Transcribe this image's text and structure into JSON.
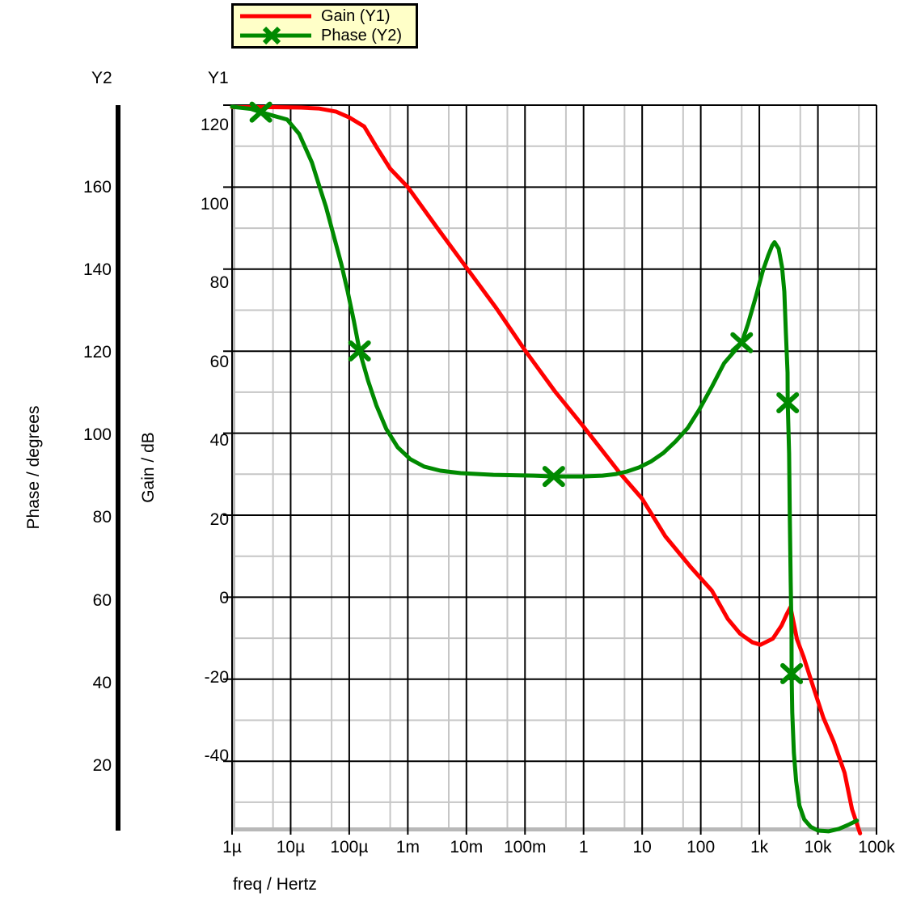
{
  "legend": {
    "items": [
      {
        "label": "Gain (Y1)",
        "color": "#ff0000",
        "marker": "none"
      },
      {
        "label": "Phase (Y2)",
        "color": "#008a00",
        "marker": "x"
      }
    ]
  },
  "axes": {
    "y1": {
      "name": "Y1",
      "title": "Gain / dB",
      "tick_labels": [
        "120",
        "100",
        "80",
        "60",
        "40",
        "20",
        "0",
        "-20",
        "-40"
      ]
    },
    "y2": {
      "name": "Y2",
      "title": "Phase / degrees",
      "tick_labels": [
        "160",
        "140",
        "120",
        "100",
        "80",
        "60",
        "40",
        "20"
      ]
    },
    "x": {
      "title": "freq / Hertz",
      "tick_labels": [
        "1µ",
        "10µ",
        "100µ",
        "1m",
        "10m",
        "100m",
        "1",
        "10",
        "100",
        "1k",
        "10k",
        "100k"
      ]
    }
  },
  "colors": {
    "major_grid": "#000000",
    "minor_grid": "#c6c6c6",
    "spine": "#b8b8b8",
    "legend_bg": "#ffffc8",
    "gain": "#ff0000",
    "phase": "#008a00"
  },
  "chart_data": {
    "type": "line",
    "title": "",
    "x_axis": {
      "label": "freq / Hertz",
      "scale": "log",
      "min": 1e-06,
      "max": 100000.0,
      "minor_gridlines": "at 5x each decade",
      "grid": true
    },
    "y_axes": [
      {
        "id": "Y1",
        "label": "Gain / dB",
        "min_visible": -57,
        "max_visible": 120,
        "major_step": 20,
        "minor_step": 10,
        "ticks": [
          120,
          100,
          80,
          60,
          40,
          20,
          0,
          -20,
          -40
        ]
      },
      {
        "id": "Y2",
        "label": "Phase / degrees",
        "min_visible": 3,
        "max_visible": 180,
        "major_step": 20,
        "ticks": [
          160,
          140,
          120,
          100,
          80,
          60,
          40,
          20
        ]
      }
    ],
    "legend_position": "top",
    "series": [
      {
        "name": "Gain (Y1)",
        "axis": "Y1",
        "color": "#ff0000",
        "marker": "none",
        "points": [
          [
            1e-06,
            119.5
          ],
          [
            5e-06,
            119.5
          ],
          [
            1.5e-05,
            119.4
          ],
          [
            3e-05,
            119.2
          ],
          [
            6e-05,
            118.4
          ],
          [
            0.0001,
            117.0
          ],
          [
            0.00018,
            114.8
          ],
          [
            0.0003,
            109.5
          ],
          [
            0.0005,
            104.5
          ],
          [
            0.001,
            100.0
          ],
          [
            0.0032,
            90.0
          ],
          [
            0.01,
            80.4
          ],
          [
            0.032,
            70.6
          ],
          [
            0.1,
            60.2
          ],
          [
            0.32,
            50.3
          ],
          [
            1,
            41.6
          ],
          [
            4.2,
            30.2
          ],
          [
            10,
            24.0
          ],
          [
            25,
            14.8
          ],
          [
            66,
            7.5
          ],
          [
            155,
            1.6
          ],
          [
            290,
            -5.3
          ],
          [
            470,
            -8.9
          ],
          [
            760,
            -11.0
          ],
          [
            1050,
            -11.6
          ],
          [
            1700,
            -10.1
          ],
          [
            2400,
            -6.9
          ],
          [
            2900,
            -4.3
          ],
          [
            3400,
            -2.4
          ],
          [
            4400,
            -10.3
          ],
          [
            5700,
            -14.6
          ],
          [
            8400,
            -22.1
          ],
          [
            12400,
            -29.4
          ],
          [
            18700,
            -35.3
          ],
          [
            28500,
            -42.8
          ],
          [
            38200,
            -51.7
          ],
          [
            52500,
            -57.6
          ]
        ]
      },
      {
        "name": "Phase (Y2)",
        "axis": "Y2",
        "color": "#008a00",
        "marker": "x",
        "points": [
          [
            1e-06,
            179.6
          ],
          [
            2.1e-06,
            179.1
          ],
          [
            3.1e-06,
            178.3
          ],
          [
            5.4e-06,
            177.3
          ],
          [
            8.7e-06,
            176.5
          ],
          [
            1.4e-05,
            173.0
          ],
          [
            2.3e-05,
            166.1
          ],
          [
            3.1e-05,
            160.2
          ],
          [
            4e-05,
            155.3
          ],
          [
            5.5e-05,
            148.0
          ],
          [
            7.3e-05,
            141.5
          ],
          [
            9.4e-05,
            134.7
          ],
          [
            0.00012,
            127.6
          ],
          [
            0.00015,
            120.3
          ],
          [
            0.00021,
            113.0
          ],
          [
            0.00029,
            107.1
          ],
          [
            0.00043,
            101.3
          ],
          [
            0.00067,
            96.9
          ],
          [
            0.0011,
            94.0
          ],
          [
            0.0019,
            92.2
          ],
          [
            0.0036,
            91.2
          ],
          [
            0.008,
            90.6
          ],
          [
            0.029,
            90.2
          ],
          [
            0.14,
            90.0
          ],
          [
            0.31,
            89.8
          ],
          [
            0.93,
            89.8
          ],
          [
            2.1,
            90.0
          ],
          [
            3.6,
            90.4
          ],
          [
            5.5,
            91.0
          ],
          [
            8.9,
            92.0
          ],
          [
            14,
            93.4
          ],
          [
            23,
            95.5
          ],
          [
            37,
            98.3
          ],
          [
            60,
            101.6
          ],
          [
            95,
            106.1
          ],
          [
            155,
            111.6
          ],
          [
            250,
            117.3
          ],
          [
            500,
            122.3
          ],
          [
            640,
            126.8
          ],
          [
            880,
            133.7
          ],
          [
            1140,
            139.6
          ],
          [
            1420,
            143.5
          ],
          [
            1660,
            145.9
          ],
          [
            1820,
            146.7
          ],
          [
            2140,
            145.1
          ],
          [
            2440,
            140.6
          ],
          [
            2670,
            134.7
          ],
          [
            2840,
            124.8
          ],
          [
            3030,
            115.0
          ],
          [
            3050,
            107.7
          ],
          [
            3220,
            95.4
          ],
          [
            3320,
            79.6
          ],
          [
            3430,
            63.9
          ],
          [
            3540,
            52.1
          ],
          [
            3560,
            41.9
          ],
          [
            3650,
            32.5
          ],
          [
            3880,
            22.7
          ],
          [
            4250,
            15.8
          ],
          [
            4830,
            9.9
          ],
          [
            5840,
            6.5
          ],
          [
            7530,
            4.7
          ],
          [
            10000.0,
            3.8
          ],
          [
            15100.0,
            3.6
          ],
          [
            22900.0,
            4.2
          ],
          [
            33400.0,
            5.2
          ],
          [
            46200.0,
            6.2
          ]
        ],
        "marker_points": [
          [
            3.1e-06,
            178.3
          ],
          [
            0.00015,
            120.3
          ],
          [
            0.31,
            89.8
          ],
          [
            500,
            122.3
          ],
          [
            3050,
            107.7
          ],
          [
            3560,
            41.9
          ]
        ]
      }
    ]
  }
}
